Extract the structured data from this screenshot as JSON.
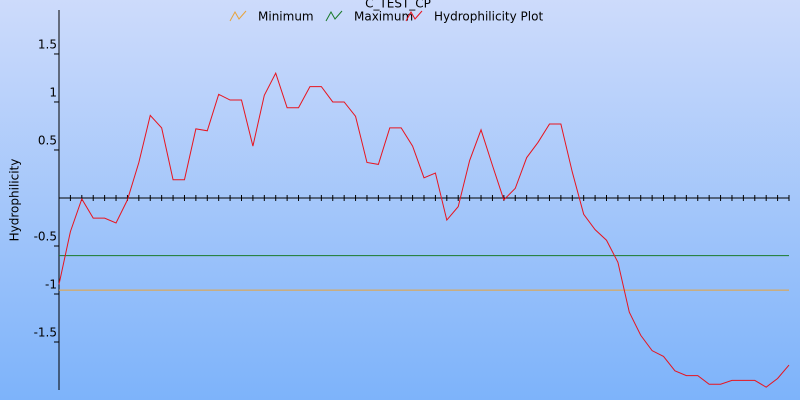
{
  "chart_data": {
    "type": "line",
    "title": "C_TEST_CP",
    "y_label": "Hydrophilicity",
    "categories": [
      null,
      null,
      null,
      null,
      null,
      null,
      null,
      null,
      null,
      null,
      null,
      null,
      null,
      null,
      null,
      null,
      null,
      null,
      null,
      null,
      null,
      null,
      null,
      null,
      null,
      null,
      null,
      null,
      null,
      null,
      null,
      null,
      null,
      null,
      null,
      null,
      null,
      null,
      null,
      null,
      null,
      null,
      null,
      null,
      null,
      null,
      null,
      null,
      null,
      null,
      null,
      null,
      null,
      null,
      null,
      null,
      null,
      null,
      null,
      null,
      null,
      null,
      null,
      null,
      null
    ],
    "series": [
      {
        "name": "Minimum",
        "color": "#e8a33a",
        "values": [
          -0.96,
          -0.96,
          -0.96,
          -0.96,
          -0.96,
          -0.96,
          -0.96,
          -0.96,
          -0.96,
          -0.96,
          -0.96,
          -0.96,
          -0.96,
          -0.96,
          -0.96,
          -0.96,
          -0.96,
          -0.96,
          -0.96,
          -0.96,
          -0.96,
          -0.96,
          -0.96,
          -0.96,
          -0.96,
          -0.96,
          -0.96,
          -0.96,
          -0.96,
          -0.96,
          -0.96,
          -0.96,
          -0.96,
          -0.96,
          -0.96,
          -0.96,
          -0.96,
          -0.96,
          -0.96,
          -0.96,
          -0.96,
          -0.96,
          -0.96,
          -0.96,
          -0.96,
          -0.96,
          -0.96,
          -0.96,
          -0.96,
          -0.96,
          -0.96,
          -0.96,
          -0.96,
          -0.96,
          -0.96,
          -0.96,
          -0.96,
          -0.96,
          -0.96,
          -0.96,
          -0.96,
          -0.96,
          -0.96,
          -0.96,
          -0.96
        ]
      },
      {
        "name": "Maximum",
        "color": "#1a7a2a",
        "values": [
          -0.6,
          -0.6,
          -0.6,
          -0.6,
          -0.6,
          -0.6,
          -0.6,
          -0.6,
          -0.6,
          -0.6,
          -0.6,
          -0.6,
          -0.6,
          -0.6,
          -0.6,
          -0.6,
          -0.6,
          -0.6,
          -0.6,
          -0.6,
          -0.6,
          -0.6,
          -0.6,
          -0.6,
          -0.6,
          -0.6,
          -0.6,
          -0.6,
          -0.6,
          -0.6,
          -0.6,
          -0.6,
          -0.6,
          -0.6,
          -0.6,
          -0.6,
          -0.6,
          -0.6,
          -0.6,
          -0.6,
          -0.6,
          -0.6,
          -0.6,
          -0.6,
          -0.6,
          -0.6,
          -0.6,
          -0.6,
          -0.6,
          -0.6,
          -0.6,
          -0.6,
          -0.6,
          -0.6,
          -0.6,
          -0.6,
          -0.6,
          -0.6,
          -0.6,
          -0.6,
          -0.6,
          -0.6,
          -0.6,
          -0.6,
          -0.6
        ]
      },
      {
        "name": "Hydrophilicity Plot",
        "color": "#e8141e",
        "values": [
          -0.9,
          -0.35,
          -0.01,
          -0.21,
          -0.21,
          -0.26,
          -0.02,
          0.37,
          0.86,
          0.73,
          0.19,
          0.19,
          0.72,
          0.7,
          1.08,
          1.02,
          1.02,
          0.54,
          1.07,
          1.3,
          0.94,
          0.94,
          1.16,
          1.16,
          1.0,
          1.0,
          0.85,
          0.37,
          0.35,
          0.73,
          0.73,
          0.54,
          0.21,
          0.26,
          -0.23,
          -0.09,
          0.39,
          0.71,
          0.34,
          -0.02,
          0.1,
          0.42,
          0.58,
          0.77,
          0.77,
          0.27,
          -0.17,
          -0.33,
          -0.44,
          -0.67,
          -1.19,
          -1.43,
          -1.59,
          -1.65,
          -1.8,
          -1.85,
          -1.85,
          -1.94,
          -1.94,
          -1.9,
          -1.9,
          -1.9,
          -1.97,
          -1.88,
          -1.74
        ]
      }
    ],
    "ylim": [
      -2,
      1.958
    ],
    "yticks": [
      -1.5,
      -1,
      -0.5,
      0.5,
      1,
      1.5
    ],
    "zero_line": true,
    "legend": "top"
  }
}
